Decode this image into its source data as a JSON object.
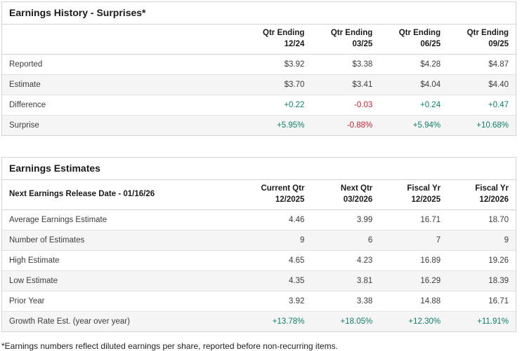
{
  "colors": {
    "positive": "#0f7d68",
    "negative": "#c02333",
    "row-alt": "#f5f5f5",
    "border": "#d4d4d4",
    "border-light": "#e3e3e3",
    "heading": "#1a1a1a",
    "text": "#3c3c3c"
  },
  "history": {
    "title": "Earnings History - Surprises*",
    "columns": [
      {
        "line1": "Qtr Ending",
        "line2": "12/24"
      },
      {
        "line1": "Qtr Ending",
        "line2": "03/25"
      },
      {
        "line1": "Qtr Ending",
        "line2": "06/25"
      },
      {
        "line1": "Qtr Ending",
        "line2": "09/25"
      }
    ],
    "rows": [
      {
        "label": "Reported",
        "values": [
          "$3.92",
          "$3.38",
          "$4.28",
          "$4.87"
        ]
      },
      {
        "label": "Estimate",
        "values": [
          "$3.70",
          "$3.41",
          "$4.04",
          "$4.40"
        ]
      },
      {
        "label": "Difference",
        "values": [
          "+0.22",
          "-0.03",
          "+0.24",
          "+0.47"
        ]
      },
      {
        "label": "Surprise",
        "values": [
          "+5.95%",
          "-0.88%",
          "+5.94%",
          "+10.68%"
        ]
      }
    ]
  },
  "estimates": {
    "title": "Earnings Estimates",
    "release_label": "Next Earnings Release Date - 01/16/26",
    "columns": [
      {
        "line1": "Current Qtr",
        "line2": "12/2025"
      },
      {
        "line1": "Next Qtr",
        "line2": "03/2026"
      },
      {
        "line1": "Fiscal Yr",
        "line2": "12/2025"
      },
      {
        "line1": "Fiscal Yr",
        "line2": "12/2026"
      }
    ],
    "rows": [
      {
        "label": "Average Earnings Estimate",
        "values": [
          "4.46",
          "3.99",
          "16.71",
          "18.70"
        ]
      },
      {
        "label": "Number of Estimates",
        "values": [
          "9",
          "6",
          "7",
          "9"
        ]
      },
      {
        "label": "High Estimate",
        "values": [
          "4.65",
          "4.23",
          "16.89",
          "19.26"
        ]
      },
      {
        "label": "Low Estimate",
        "values": [
          "4.35",
          "3.81",
          "16.29",
          "18.39"
        ]
      },
      {
        "label": "Prior Year",
        "values": [
          "3.92",
          "3.38",
          "14.88",
          "16.71"
        ]
      },
      {
        "label": "Growth Rate Est. (year over year)",
        "values": [
          "+13.78%",
          "+18.05%",
          "+12.30%",
          "+11.91%"
        ]
      }
    ]
  },
  "footnote": "*Earnings numbers reflect diluted earnings per share, reported before non-recurring items."
}
